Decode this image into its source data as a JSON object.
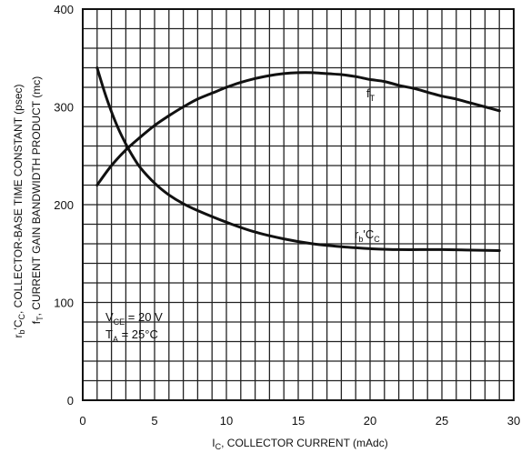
{
  "chart_data": {
    "type": "line",
    "xlabel": {
      "prefix": "I",
      "sub": "C",
      "rest": ", COLLECTOR CURRENT (mAdc)"
    },
    "ylabel_outer": {
      "prefix": "r",
      "sub1": "b",
      "mid": "'C",
      "sub2": "C",
      "rest": ", COLLECTOR-BASE TIME CONSTANT (psec)"
    },
    "ylabel_inner": {
      "prefix": "f",
      "sub": "T",
      "rest": ", CURRENT GAIN   BANDWIDTH PRODUCT (mc)"
    },
    "xlim": [
      0,
      30
    ],
    "ylim": [
      0,
      400
    ],
    "x_ticks": [
      "0",
      "5",
      "10",
      "15",
      "20",
      "25",
      "30"
    ],
    "y_ticks": [
      "0",
      "100",
      "200",
      "300",
      "400"
    ],
    "grid": true,
    "series": [
      {
        "name": {
          "main": "f",
          "sub": "T"
        },
        "x": [
          1,
          2,
          3,
          4,
          5,
          6,
          7,
          8,
          9,
          10,
          11,
          12,
          13,
          14,
          15,
          16,
          17,
          18,
          19,
          20,
          21,
          22,
          23,
          24,
          25,
          26,
          27,
          28,
          29
        ],
        "values": [
          220,
          240,
          256,
          269,
          281,
          291,
          300,
          308,
          314,
          320,
          325,
          329,
          332,
          334,
          335,
          335,
          334,
          333,
          331,
          328,
          326,
          322,
          319,
          315,
          311,
          308,
          304,
          300,
          296
        ]
      },
      {
        "name": {
          "main": "r",
          "sub1": "b",
          "mid": "'C",
          "sub2": "C"
        },
        "x": [
          1,
          1.5,
          2,
          2.5,
          3,
          3.5,
          4,
          5,
          6,
          7,
          8,
          10,
          12,
          14,
          16,
          18,
          20,
          22,
          25,
          29
        ],
        "values": [
          340,
          316,
          295,
          277,
          262,
          249,
          238,
          222,
          210,
          201,
          194,
          182,
          172,
          165,
          160,
          157,
          155,
          154,
          154,
          153
        ]
      }
    ],
    "annotations": [
      {
        "main": "V",
        "sub": "CE",
        "rest": " = 20 V"
      },
      {
        "main": "T",
        "sub": "A",
        "rest": " = 25°C"
      }
    ]
  }
}
